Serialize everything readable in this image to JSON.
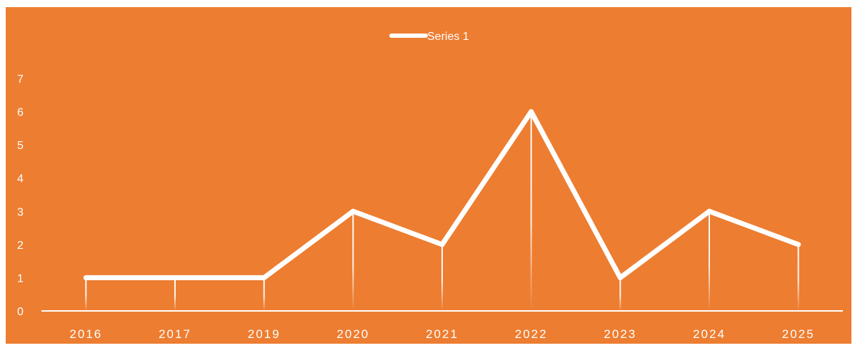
{
  "chart_data": {
    "type": "line",
    "categories": [
      "2016",
      "2017",
      "2019",
      "2020",
      "2021",
      "2022",
      "2023",
      "2024",
      "2025"
    ],
    "series": [
      {
        "name": "Series 1",
        "values": [
          1,
          1,
          1,
          3,
          2,
          6,
          1,
          3,
          2
        ]
      }
    ],
    "ylim": [
      0,
      7
    ],
    "y_ticks": [
      "0",
      "1",
      "2",
      "3",
      "4",
      "5",
      "6",
      "7"
    ],
    "legend_position": "top",
    "drop_lines": true,
    "grid": false,
    "colors": {
      "background": "#ED7D31",
      "line": "#FFFFFF",
      "text": "#FFFFFF"
    }
  }
}
